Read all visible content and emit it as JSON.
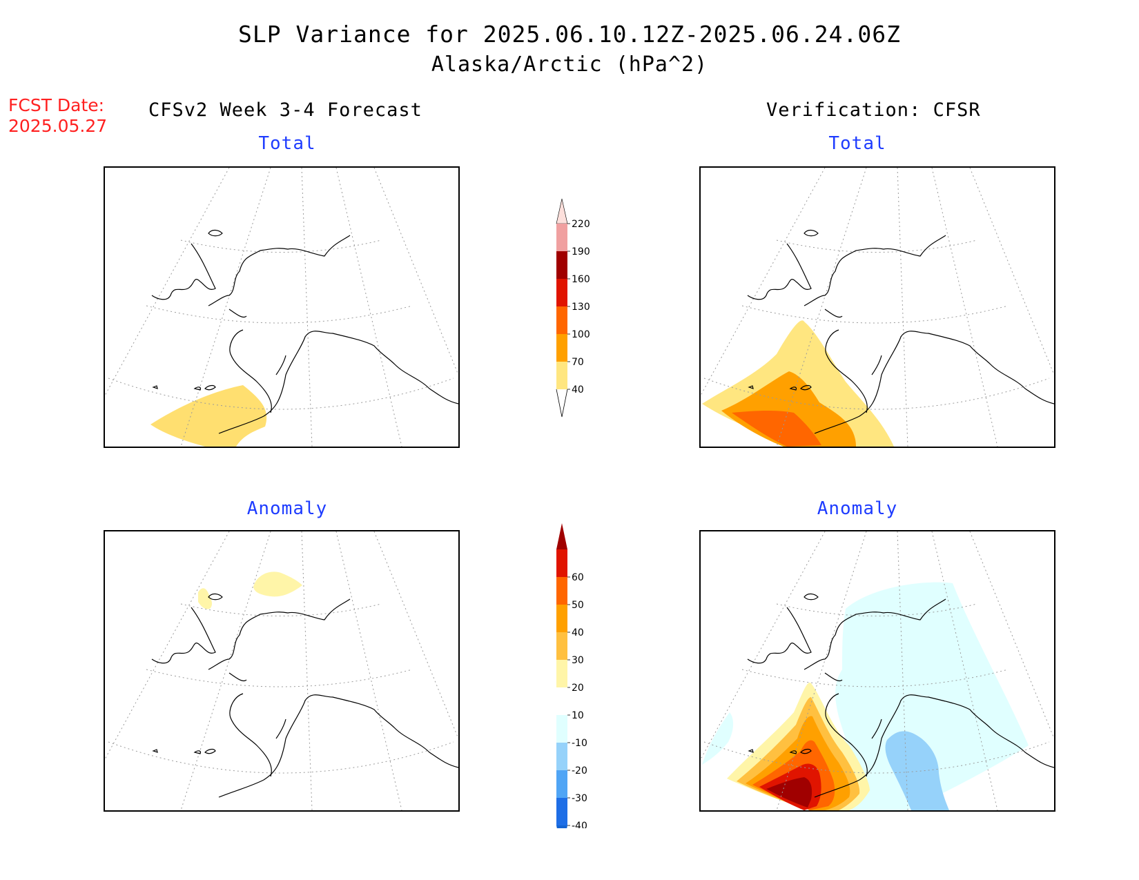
{
  "header": {
    "title": "SLP Variance for 2025.06.10.12Z-2025.06.24.06Z",
    "subtitle": "Alaska/Arctic (hPa^2)",
    "fcst_label": "FCST Date:",
    "fcst_date": "2025.05.27"
  },
  "columns": {
    "left": "CFSv2 Week 3-4 Forecast",
    "right": "Verification: CFSR"
  },
  "panels": {
    "forecast_total": {
      "title": "Total",
      "fill_levels": [
        {
          "level": "40-70",
          "color": "#ffdf70"
        }
      ]
    },
    "verification_total": {
      "title": "Total",
      "fill_levels": [
        {
          "level": "40-70",
          "color": "#ffe680"
        },
        {
          "level": "70-100",
          "color": "#ffa000"
        },
        {
          "level": "100-130",
          "color": "#ff6600"
        }
      ]
    },
    "forecast_anomaly": {
      "title": "Anomaly",
      "fill_levels": [
        {
          "level": "10-20",
          "color": "#fff5a8"
        }
      ]
    },
    "verification_anomaly": {
      "title": "Anomaly",
      "fill_levels": [
        {
          "level": "-20--10",
          "color": "#e0ffff"
        },
        {
          "level": "-30--20",
          "color": "#96d2fa"
        },
        {
          "level": "10-20",
          "color": "#fff5a8"
        },
        {
          "level": "20-30",
          "color": "#ffc040"
        },
        {
          "level": "30-40",
          "color": "#ffa000"
        },
        {
          "level": "40-50",
          "color": "#ff6600"
        },
        {
          "level": "50-60",
          "color": "#e01400"
        },
        {
          "level": ">60",
          "color": "#a00000"
        }
      ]
    }
  },
  "colorbars": {
    "total": {
      "labels": [
        "40",
        "70",
        "100",
        "130",
        "160",
        "190",
        "220"
      ],
      "colors": [
        "#ffe680",
        "#ffa000",
        "#ff6600",
        "#e01400",
        "#a00000",
        "#f0a0a0",
        "#fde0dc"
      ]
    },
    "anomaly": {
      "labels": [
        "-40",
        "-30",
        "-20",
        "-10",
        "10",
        "20",
        "30",
        "40",
        "50",
        "60"
      ],
      "colors": [
        "#1464d2",
        "#1e6ee6",
        "#50a5f5",
        "#96d2fa",
        "#e0ffff",
        "#ffffff",
        "#fff5a8",
        "#ffc040",
        "#ffa000",
        "#ff6600",
        "#e01400",
        "#a00000"
      ]
    }
  }
}
